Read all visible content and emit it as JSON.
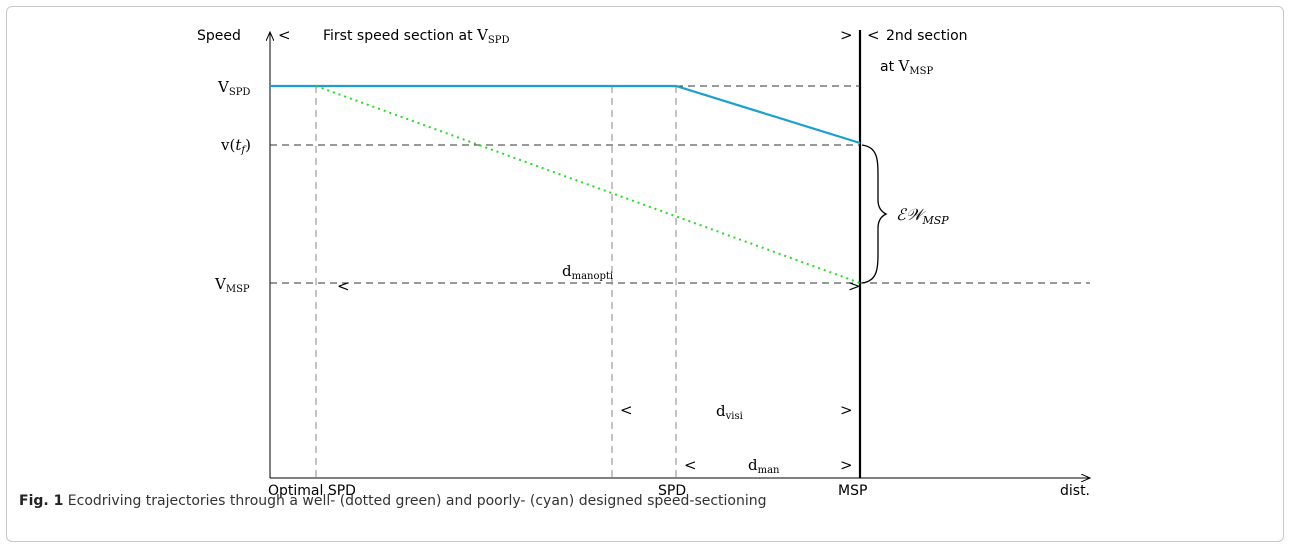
{
  "axes": {
    "y_title": "Speed",
    "x_title": "dist."
  },
  "y_labels": {
    "v_spd": {
      "main": "V",
      "sub": "SPD"
    },
    "v_tf": {
      "main": "v(",
      "var": "t",
      "var_sub": "f",
      "close": ")"
    },
    "v_msp": {
      "main": "V",
      "sub": "MSP"
    }
  },
  "x_labels": {
    "optimal_spd": "Optimal SPD",
    "spd": "SPD",
    "msp": "MSP"
  },
  "sections": {
    "first_open": "<",
    "first_text": "First speed section at ",
    "first_sym": "V",
    "first_sub": "SPD",
    "first_close": ">",
    "second_open": "<",
    "second_text": "2nd section",
    "second_line2": "at ",
    "second_sym": "V",
    "second_sub": "MSP"
  },
  "distances": {
    "manopti": {
      "open": "<",
      "main": "d",
      "sub": "manopti",
      "close": ">"
    },
    "visi": {
      "open": "<",
      "main": "d",
      "sub": "visi",
      "close": ">"
    },
    "man": {
      "open": "<",
      "main": "d",
      "sub": "man",
      "close": ">"
    }
  },
  "brace_label": {
    "main": "ℰ𝒲",
    "sub": "MSP"
  },
  "caption": {
    "fig": "Fig. 1",
    "text": " Ecodriving trajectories through a well- (dotted green) and poorly- (cyan) designed speed-sectioning"
  },
  "colors": {
    "poor_trajectory": "#1a9fd0",
    "good_trajectory": "#22dd22",
    "axis": "#000000",
    "guide": "#444444"
  }
}
